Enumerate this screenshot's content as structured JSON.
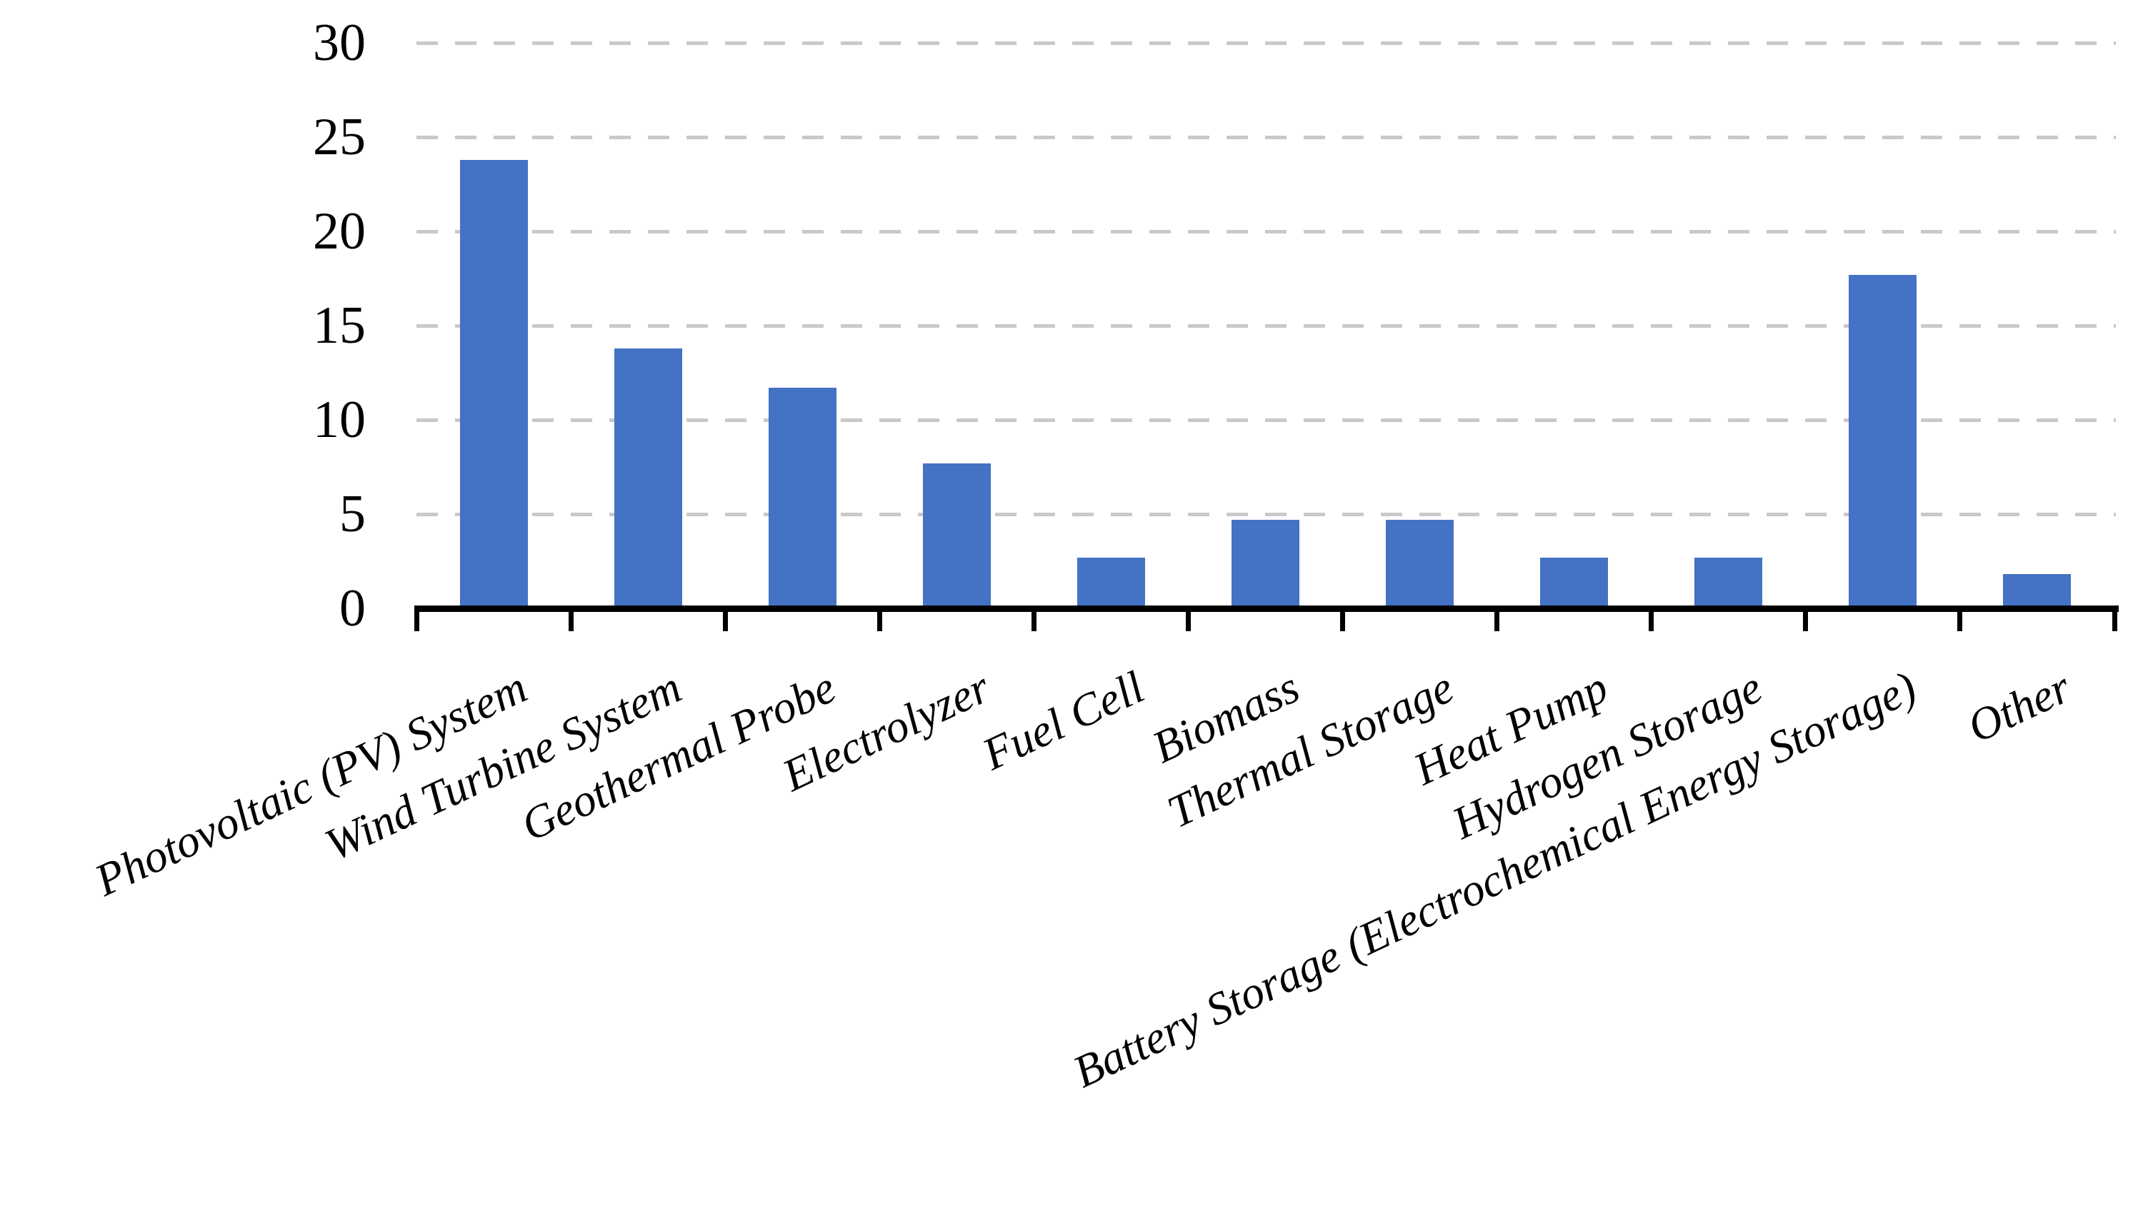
{
  "chart_data": {
    "type": "bar",
    "title": "",
    "xlabel": "",
    "ylabel": "",
    "categories": [
      "Photovoltaic (PV) System",
      "Wind Turbine System",
      "Geothermal Probe",
      "Electrolyzer",
      "Fuel Cell",
      "Biomass",
      "Thermal Storage",
      "Heat Pump",
      "Hydrogen Storage",
      "Battery Storage (Electrochemical Energy Storage)",
      "Other"
    ],
    "values": [
      23.8,
      13.8,
      11.7,
      7.7,
      2.7,
      4.7,
      4.7,
      2.7,
      2.7,
      17.7,
      1.8
    ],
    "ylim": [
      0,
      30
    ],
    "yticks": [
      0,
      5,
      10,
      15,
      20,
      25,
      30
    ],
    "grid": "horizontal-dashed",
    "legend_position": "none",
    "bar_color": "#4472C4",
    "gridline_color": "#C9C9C9",
    "axis_color": "#000000",
    "label_rotation_deg": -25
  }
}
